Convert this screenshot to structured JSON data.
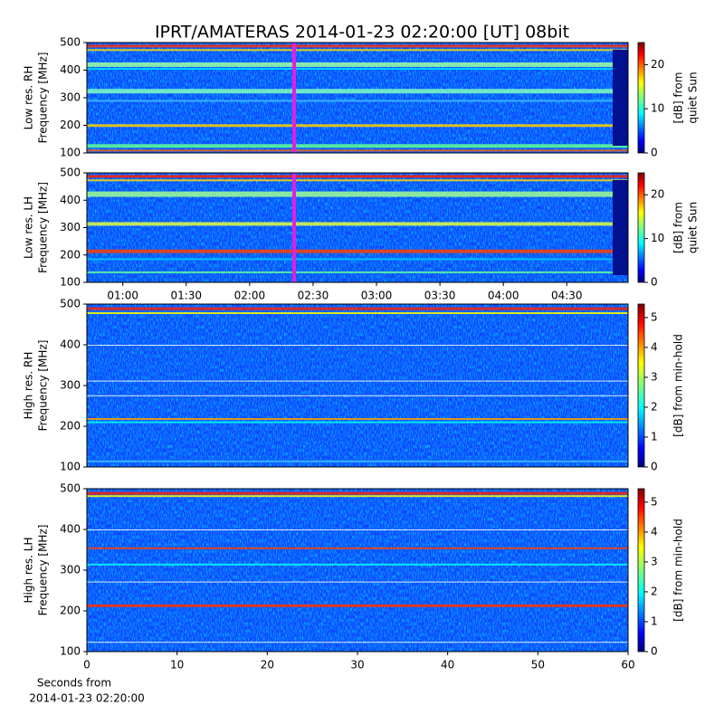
{
  "chart_data": [
    {
      "type": "spectrogram",
      "title": "IPRT/AMATERAS 2014-01-23 02:20:00 [UT]   08bit",
      "ylabel": [
        "Low res. RH",
        "Frequency [MHz]"
      ],
      "ylim": [
        100,
        500
      ],
      "yticks": [
        100,
        200,
        300,
        400,
        500
      ],
      "xlim": [
        43,
        299
      ],
      "colorbar": {
        "label": [
          "[dB] from",
          "quiet Sun"
        ],
        "lim": [
          0,
          25
        ],
        "ticks": [
          0,
          10,
          20
        ]
      }
    },
    {
      "type": "spectrogram",
      "ylabel": [
        "Low res. LH",
        "Frequency [MHz]"
      ],
      "ylim": [
        100,
        500
      ],
      "yticks": [
        100,
        200,
        300,
        400,
        500
      ],
      "xlim": [
        43,
        299
      ],
      "xticks": [
        {
          "value": 60,
          "label": "01:00"
        },
        {
          "value": 90,
          "label": "01:30"
        },
        {
          "value": 120,
          "label": "02:00"
        },
        {
          "value": 150,
          "label": "02:30"
        },
        {
          "value": 180,
          "label": "03:00"
        },
        {
          "value": 210,
          "label": "03:30"
        },
        {
          "value": 240,
          "label": "04:00"
        },
        {
          "value": 270,
          "label": "04:30"
        }
      ],
      "colorbar": {
        "label": [
          "[dB] from",
          "quiet Sun"
        ],
        "lim": [
          0,
          25
        ],
        "ticks": [
          0,
          10,
          20
        ]
      }
    },
    {
      "type": "spectrogram",
      "ylabel": [
        "High res. RH",
        "Frequency [MHz]"
      ],
      "ylim": [
        100,
        500
      ],
      "yticks": [
        100,
        200,
        300,
        400,
        500
      ],
      "xlim": [
        0,
        60
      ],
      "colorbar": {
        "label": [
          "[dB] from min-hold"
        ],
        "lim": [
          0,
          5.45
        ],
        "ticks": [
          0,
          1,
          2,
          3,
          4,
          5
        ]
      }
    },
    {
      "type": "spectrogram",
      "ylabel": [
        "High res. LH",
        "Frequency [MHz]"
      ],
      "ylim": [
        100,
        500
      ],
      "yticks": [
        100,
        200,
        300,
        400,
        500
      ],
      "xlim": [
        0,
        60
      ],
      "xticks": [
        0,
        10,
        20,
        30,
        40,
        50,
        60
      ],
      "xlabel": [
        "Seconds from",
        "2014-01-23 02:20:00"
      ],
      "colorbar": {
        "label": [
          "[dB] from min-hold"
        ],
        "lim": [
          0,
          5.45
        ],
        "ticks": [
          0,
          1,
          2,
          3,
          4,
          5
        ]
      }
    }
  ]
}
